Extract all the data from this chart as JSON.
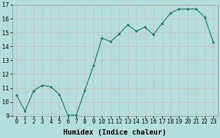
{
  "x": [
    0,
    1,
    2,
    3,
    4,
    5,
    6,
    7,
    8,
    9,
    10,
    11,
    12,
    13,
    14,
    15,
    16,
    17,
    18,
    19,
    20,
    21,
    22,
    23
  ],
  "y": [
    10.5,
    9.35,
    10.8,
    11.2,
    11.1,
    10.55,
    9.05,
    9.05,
    10.85,
    12.6,
    14.6,
    14.35,
    14.9,
    15.55,
    15.1,
    15.4,
    14.85,
    15.65,
    16.4,
    16.7,
    16.7,
    16.7,
    16.1,
    14.3
  ],
  "line_color": "#1a7a6a",
  "marker_color": "#1a7a6a",
  "bg_color": "#b2dede",
  "grid_color": "#d8b8b8",
  "xlabel": "Humidex (Indice chaleur)",
  "ylim": [
    9,
    17
  ],
  "xlim_min": -0.5,
  "xlim_max": 23.5,
  "yticks": [
    9,
    10,
    11,
    12,
    13,
    14,
    15,
    16,
    17
  ],
  "xtick_labels": [
    "0",
    "1",
    "2",
    "3",
    "4",
    "5",
    "6",
    "7",
    "8",
    "9",
    "10",
    "11",
    "12",
    "13",
    "14",
    "15",
    "16",
    "17",
    "18",
    "19",
    "20",
    "21",
    "22",
    "23"
  ],
  "label_fontsize": 7.5,
  "tick_fontsize": 6.0
}
